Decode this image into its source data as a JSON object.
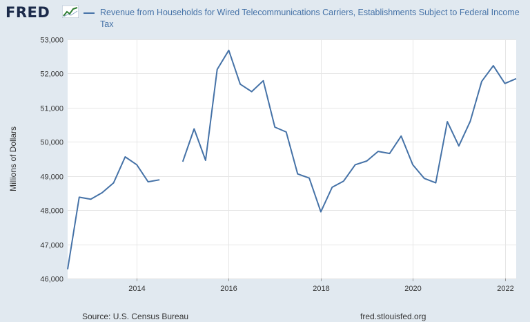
{
  "header": {
    "logo_text": "FRED",
    "legend_label": "Revenue from Households for Wired Telecommunications Carriers, Establishments Subject to Federal Income Tax"
  },
  "footer": {
    "source": "Source: U.S. Census Bureau",
    "url": "fred.stlouisfed.org"
  },
  "colors": {
    "background": "#e1e9f0",
    "plot": "#ffffff",
    "series": "#4572a7"
  },
  "chart_data": {
    "type": "line",
    "ylabel": "Millions of Dollars",
    "ylim": [
      46000,
      53000
    ],
    "yticks": [
      46000,
      47000,
      48000,
      49000,
      50000,
      51000,
      52000,
      53000
    ],
    "ytick_labels": [
      "46,000",
      "47,000",
      "48,000",
      "49,000",
      "50,000",
      "51,000",
      "52,000",
      "53,000"
    ],
    "xlim": [
      "2012-07-01",
      "2022-04-01"
    ],
    "xticks": [
      "2014-01-01",
      "2016-01-01",
      "2018-01-01",
      "2020-01-01",
      "2022-01-01"
    ],
    "xtick_labels": [
      "2014",
      "2016",
      "2018",
      "2020",
      "2022"
    ],
    "grid": true,
    "series": [
      {
        "name": "Revenue from Households for Wired Telecommunications Carriers, Establishments Subject to Federal Income Tax",
        "x": [
          "2012-07-01",
          "2012-10-01",
          "2013-01-01",
          "2013-04-01",
          "2013-07-01",
          "2013-10-01",
          "2014-01-01",
          "2014-04-01",
          "2014-07-01",
          "2014-10-01",
          "2015-01-01",
          "2015-04-01",
          "2015-07-01",
          "2015-10-01",
          "2016-01-01",
          "2016-04-01",
          "2016-07-01",
          "2016-10-01",
          "2017-01-01",
          "2017-04-01",
          "2017-07-01",
          "2017-10-01",
          "2018-01-01",
          "2018-04-01",
          "2018-07-01",
          "2018-10-01",
          "2019-01-01",
          "2019-04-01",
          "2019-07-01",
          "2019-10-01",
          "2020-01-01",
          "2020-04-01",
          "2020-07-01",
          "2020-10-01",
          "2021-01-01",
          "2021-04-01",
          "2021-07-01",
          "2021-10-01",
          "2022-01-01",
          "2022-04-01"
        ],
        "values": [
          46270,
          48380,
          48320,
          48510,
          48800,
          49560,
          49330,
          48830,
          48890,
          null,
          49420,
          50380,
          49460,
          52120,
          52680,
          51690,
          51470,
          51790,
          50430,
          50290,
          49060,
          48940,
          47950,
          48670,
          48850,
          49330,
          49440,
          49720,
          49660,
          50170,
          49330,
          48930,
          48800,
          50590,
          49880,
          50600,
          51770,
          52230,
          51710,
          51850
        ]
      }
    ]
  }
}
